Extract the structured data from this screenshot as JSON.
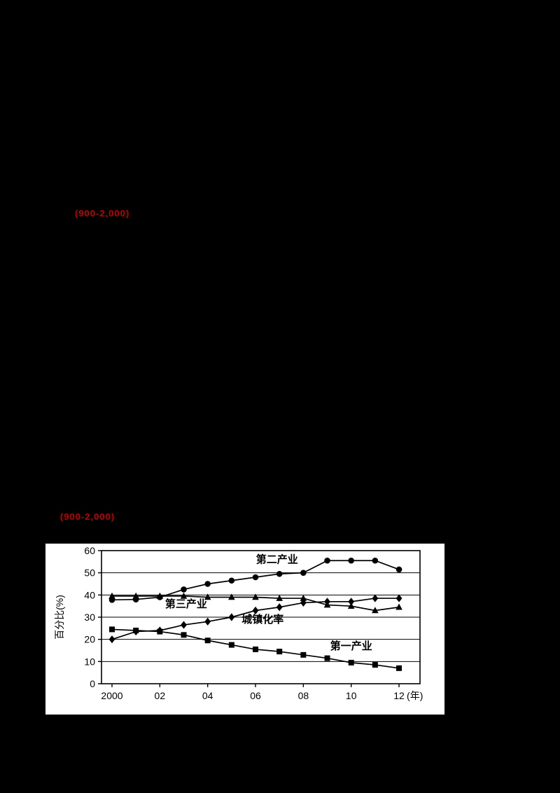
{
  "page": {
    "background": "#000000",
    "red_annotations": [
      {
        "text": "(900-2,000)"
      },
      {
        "text": "(900-2,000)"
      }
    ]
  },
  "chart_data": {
    "type": "line",
    "title": "",
    "ylabel": "百分比(%)",
    "x_axis_suffix": "(年)",
    "ylim": [
      0,
      60
    ],
    "yticks": [
      0,
      10,
      20,
      30,
      40,
      50,
      60
    ],
    "grid": true,
    "legend": "inline-annotations",
    "years": [
      2000,
      2001,
      2002,
      2003,
      2004,
      2005,
      2006,
      2007,
      2008,
      2009,
      2010,
      2011,
      2012
    ],
    "xticks": [
      {
        "year": 2000,
        "label": "2000"
      },
      {
        "year": 2002,
        "label": "02"
      },
      {
        "year": 2004,
        "label": "04"
      },
      {
        "year": 2006,
        "label": "06"
      },
      {
        "year": 2008,
        "label": "08"
      },
      {
        "year": 2010,
        "label": "10"
      },
      {
        "year": 2012,
        "label": "12"
      }
    ],
    "series": [
      {
        "key": "secondary-industry",
        "name": "第二产业",
        "marker": "circle",
        "values": [
          37.8,
          38,
          39,
          42.5,
          45,
          46.5,
          48,
          49.5,
          50,
          55.5,
          55.5,
          55.5,
          51.5
        ]
      },
      {
        "key": "tertiary-industry",
        "name": "第三产业",
        "marker": "triangle",
        "values": [
          39.5,
          39.5,
          39.5,
          39.5,
          39,
          39,
          39,
          38.5,
          38.5,
          35.5,
          35,
          33,
          34.5
        ]
      },
      {
        "key": "urbanization-rate",
        "name": "城镇化率",
        "marker": "diamond",
        "values": [
          20,
          23.5,
          24,
          26.5,
          28,
          30,
          33,
          34.5,
          36.5,
          37,
          37,
          38.5,
          38.5
        ]
      },
      {
        "key": "primary-industry",
        "name": "第一产业",
        "marker": "square",
        "values": [
          24.5,
          24,
          23.5,
          22,
          19.5,
          17.5,
          15.5,
          14.5,
          13,
          11.5,
          9.5,
          8.5,
          7
        ]
      }
    ],
    "annotations": [
      {
        "text": "第二产业",
        "year": 2006.9,
        "percent": 56
      },
      {
        "text": "第三产业",
        "year": 2003.1,
        "percent": 36
      },
      {
        "text": "城镇化率",
        "year": 2006.3,
        "percent": 29
      },
      {
        "text": "第一产业",
        "year": 2010.0,
        "percent": 17
      }
    ]
  }
}
